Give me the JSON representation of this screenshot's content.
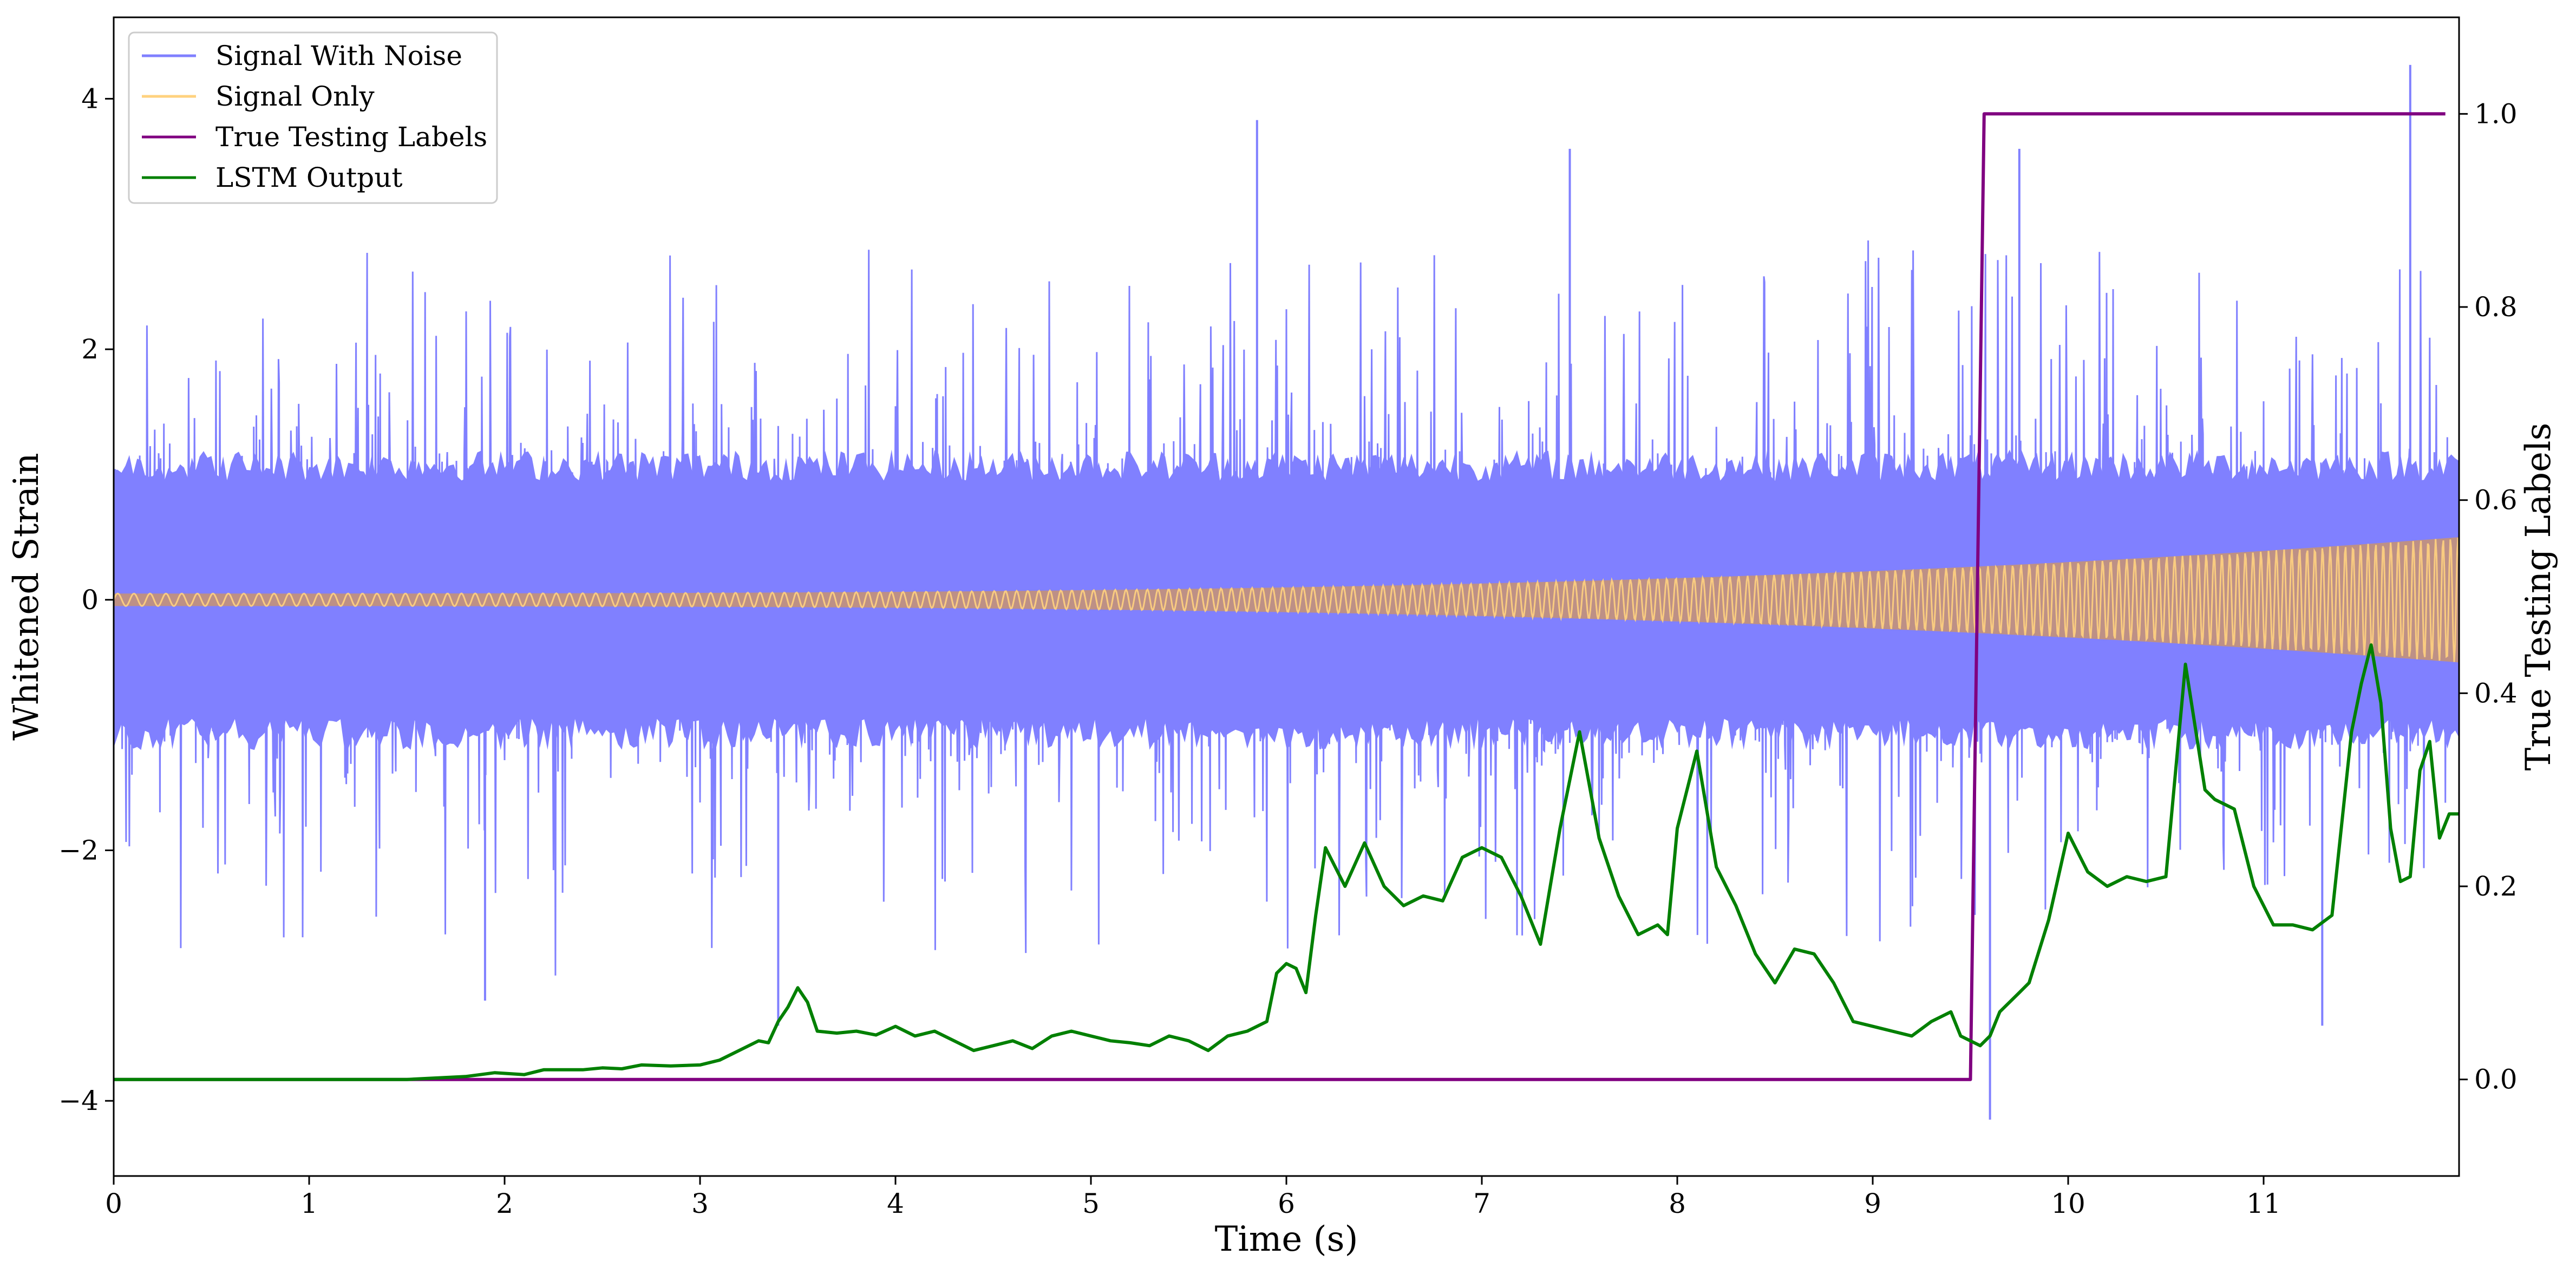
{
  "chart_data": {
    "type": "line",
    "xlabel": "Time (s)",
    "ylabel_left": "Whitened Strain",
    "ylabel_right": "True Testing Labels",
    "xlim": [
      0,
      12
    ],
    "ylim_left": [
      -4.6,
      4.65
    ],
    "ylim_right": [
      -0.1,
      1.1
    ],
    "x_ticks": [
      0,
      1,
      2,
      3,
      4,
      5,
      6,
      7,
      8,
      9,
      10,
      11
    ],
    "x_tick_labels": [
      "0",
      "1",
      "2",
      "3",
      "4",
      "5",
      "6",
      "7",
      "8",
      "9",
      "10",
      "11"
    ],
    "y_left_ticks": [
      4,
      2,
      0,
      -2,
      -4
    ],
    "y_left_tick_labels": [
      "4",
      "2",
      "0",
      "−2",
      "−4"
    ],
    "y_right_ticks": [
      1.0,
      0.8,
      0.6,
      0.4,
      0.2,
      0.0
    ],
    "y_right_tick_labels": [
      "1.0",
      "0.8",
      "0.6",
      "0.4",
      "0.2",
      "0.0"
    ],
    "grid": false,
    "legend_placement": "top-left",
    "series": [
      {
        "name": "Signal With Noise",
        "axis": "left",
        "color": "#8080ff",
        "description_values": {
          "core_band_typical": [
            -1.0,
            1.0
          ],
          "max_spike": 4.27,
          "max_spike_at": 11.75,
          "min_spike": -4.15,
          "min_spike_at": 9.6,
          "notable_spikes": [
            [
              5.85,
              3.83
            ],
            [
              7.45,
              3.6
            ],
            [
              9.75,
              3.6
            ],
            [
              3.4,
              -3.4
            ],
            [
              1.9,
              -3.2
            ],
            [
              11.3,
              -3.4
            ],
            [
              9.6,
              -4.15
            ],
            [
              11.75,
              4.27
            ]
          ]
        }
      },
      {
        "name": "Signal Only",
        "axis": "left",
        "color": "#ffd27f",
        "description_values": {
          "amplitude_start": 0.05,
          "amplitude_end": 0.5
        }
      },
      {
        "name": "True Testing Labels",
        "axis": "right",
        "color": "#800080",
        "points": [
          [
            0,
            0.0
          ],
          [
            9.5,
            0.0
          ],
          [
            9.57,
            1.0
          ],
          [
            11.93,
            1.0
          ]
        ]
      },
      {
        "name": "LSTM Output",
        "axis": "right",
        "color": "#008000",
        "points": [
          [
            0,
            0.0
          ],
          [
            1.0,
            0.0
          ],
          [
            1.5,
            0.0
          ],
          [
            1.8,
            0.003
          ],
          [
            1.95,
            0.007
          ],
          [
            2.1,
            0.005
          ],
          [
            2.2,
            0.01
          ],
          [
            2.4,
            0.01
          ],
          [
            2.5,
            0.012
          ],
          [
            2.6,
            0.011
          ],
          [
            2.7,
            0.015
          ],
          [
            2.85,
            0.014
          ],
          [
            3.0,
            0.015
          ],
          [
            3.1,
            0.02
          ],
          [
            3.2,
            0.03
          ],
          [
            3.3,
            0.04
          ],
          [
            3.35,
            0.038
          ],
          [
            3.4,
            0.06
          ],
          [
            3.45,
            0.075
          ],
          [
            3.5,
            0.095
          ],
          [
            3.55,
            0.08
          ],
          [
            3.6,
            0.05
          ],
          [
            3.7,
            0.048
          ],
          [
            3.8,
            0.05
          ],
          [
            3.9,
            0.046
          ],
          [
            4.0,
            0.055
          ],
          [
            4.1,
            0.045
          ],
          [
            4.2,
            0.05
          ],
          [
            4.3,
            0.04
          ],
          [
            4.4,
            0.03
          ],
          [
            4.5,
            0.035
          ],
          [
            4.6,
            0.04
          ],
          [
            4.7,
            0.032
          ],
          [
            4.8,
            0.045
          ],
          [
            4.9,
            0.05
          ],
          [
            5.0,
            0.045
          ],
          [
            5.1,
            0.04
          ],
          [
            5.2,
            0.038
          ],
          [
            5.3,
            0.035
          ],
          [
            5.4,
            0.045
          ],
          [
            5.5,
            0.04
          ],
          [
            5.6,
            0.03
          ],
          [
            5.7,
            0.045
          ],
          [
            5.8,
            0.05
          ],
          [
            5.9,
            0.06
          ],
          [
            5.95,
            0.11
          ],
          [
            6.0,
            0.12
          ],
          [
            6.05,
            0.115
          ],
          [
            6.1,
            0.09
          ],
          [
            6.15,
            0.17
          ],
          [
            6.2,
            0.24
          ],
          [
            6.3,
            0.2
          ],
          [
            6.4,
            0.245
          ],
          [
            6.5,
            0.2
          ],
          [
            6.6,
            0.18
          ],
          [
            6.7,
            0.19
          ],
          [
            6.8,
            0.185
          ],
          [
            6.9,
            0.23
          ],
          [
            7.0,
            0.24
          ],
          [
            7.1,
            0.23
          ],
          [
            7.2,
            0.19
          ],
          [
            7.3,
            0.14
          ],
          [
            7.4,
            0.26
          ],
          [
            7.5,
            0.36
          ],
          [
            7.6,
            0.25
          ],
          [
            7.7,
            0.19
          ],
          [
            7.8,
            0.15
          ],
          [
            7.9,
            0.16
          ],
          [
            7.95,
            0.15
          ],
          [
            8.0,
            0.26
          ],
          [
            8.1,
            0.34
          ],
          [
            8.2,
            0.22
          ],
          [
            8.3,
            0.18
          ],
          [
            8.4,
            0.13
          ],
          [
            8.5,
            0.1
          ],
          [
            8.6,
            0.135
          ],
          [
            8.7,
            0.13
          ],
          [
            8.8,
            0.1
          ],
          [
            8.9,
            0.06
          ],
          [
            9.0,
            0.055
          ],
          [
            9.1,
            0.05
          ],
          [
            9.2,
            0.045
          ],
          [
            9.3,
            0.06
          ],
          [
            9.4,
            0.07
          ],
          [
            9.45,
            0.045
          ],
          [
            9.55,
            0.035
          ],
          [
            9.6,
            0.045
          ],
          [
            9.65,
            0.07
          ],
          [
            9.75,
            0.09
          ],
          [
            9.8,
            0.1
          ],
          [
            9.9,
            0.165
          ],
          [
            10.0,
            0.255
          ],
          [
            10.1,
            0.215
          ],
          [
            10.2,
            0.2
          ],
          [
            10.3,
            0.21
          ],
          [
            10.4,
            0.205
          ],
          [
            10.5,
            0.21
          ],
          [
            10.6,
            0.43
          ],
          [
            10.7,
            0.3
          ],
          [
            10.75,
            0.29
          ],
          [
            10.85,
            0.28
          ],
          [
            10.95,
            0.2
          ],
          [
            11.05,
            0.16
          ],
          [
            11.15,
            0.16
          ],
          [
            11.25,
            0.155
          ],
          [
            11.35,
            0.17
          ],
          [
            11.45,
            0.36
          ],
          [
            11.5,
            0.41
          ],
          [
            11.55,
            0.45
          ],
          [
            11.6,
            0.39
          ],
          [
            11.65,
            0.26
          ],
          [
            11.7,
            0.205
          ],
          [
            11.75,
            0.21
          ],
          [
            11.8,
            0.32
          ],
          [
            11.85,
            0.35
          ],
          [
            11.9,
            0.25
          ],
          [
            11.95,
            0.275
          ],
          [
            12.0,
            0.275
          ]
        ]
      }
    ]
  }
}
